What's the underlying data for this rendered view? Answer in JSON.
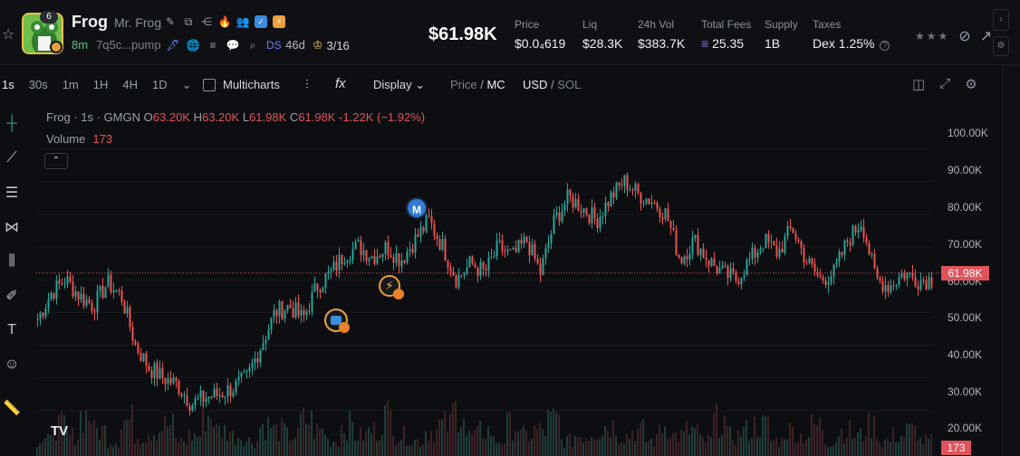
{
  "token": {
    "name": "Frog",
    "full_name": "Mr. Frog",
    "age": "8m",
    "address": "7q5c...pump",
    "badge_count": "6",
    "ds_label": "DS",
    "ds_age": "46d",
    "holders": "3/16"
  },
  "header": {
    "market_cap": "$61.98K",
    "stats": [
      {
        "label": "Price",
        "value": "$0.0₄619"
      },
      {
        "label": "Liq",
        "value": "$28.3K"
      },
      {
        "label": "24h Vol",
        "value": "$383.7K"
      },
      {
        "label": "Total Fees",
        "value": "25.35"
      },
      {
        "label": "Supply",
        "value": "1B"
      },
      {
        "label": "Taxes",
        "value": "Dex 1.25%"
      }
    ]
  },
  "toolbar": {
    "timeframes": [
      "1s",
      "30s",
      "1m",
      "1H",
      "4H",
      "1D"
    ],
    "active_timeframe": "1s",
    "multicharts_label": "Multicharts",
    "display_label": "Display",
    "price_label": "Price",
    "mc_label": "MC",
    "usd_label": "USD",
    "sol_label": "SOL"
  },
  "legend": {
    "pair": "Frog · 1s · GMGN",
    "open": "63.20K",
    "high": "63.20K",
    "low": "61.98K",
    "close": "61.98K",
    "change": "-1.22K (−1.92%)",
    "volume_label": "Volume",
    "volume_value": "173",
    "o": "O",
    "h": "H",
    "l": "L",
    "c": "C"
  },
  "markers": {
    "m_label": "M"
  },
  "chart_data": {
    "type": "candlestick",
    "ylabel": "",
    "y_ticks": [
      "100.00K",
      "90.00K",
      "80.00K",
      "70.00K",
      "60.00K",
      "50.00K",
      "40.00K",
      "30.00K",
      "20.00K"
    ],
    "ylim": [
      15000,
      105000
    ],
    "current_price_label": "61.98K",
    "current_price": 61980,
    "current_volume_label": "173",
    "colors": {
      "up": "#26a69a",
      "down": "#ef5350"
    },
    "close_path": [
      48000,
      56000,
      60000,
      55000,
      52000,
      59000,
      55000,
      40000,
      33000,
      30000,
      28000,
      22000,
      24000,
      25000,
      27000,
      30000,
      40000,
      50000,
      52000,
      48000,
      58000,
      62000,
      68000,
      70000,
      67000,
      70000,
      66000,
      72000,
      78000,
      70000,
      60000,
      65000,
      62000,
      70000,
      67000,
      72000,
      62000,
      78000,
      85000,
      82000,
      78000,
      85000,
      90000,
      86000,
      84000,
      80000,
      66000,
      72000,
      66000,
      62000,
      60000,
      66000,
      72000,
      68000,
      76000,
      66000,
      60000,
      62000,
      72000,
      78000,
      60000,
      58000,
      62000,
      60000,
      60000
    ],
    "volume_level": [
      0.3,
      0.6,
      0.4,
      0.8,
      0.5,
      0.3,
      0.7,
      0.4,
      0.5,
      0.6,
      0.3,
      0.4,
      0.8,
      0.5,
      0.4,
      0.3,
      0.6,
      0.5,
      0.4,
      0.7,
      0.5,
      0.3,
      0.6,
      0.4,
      0.5,
      0.8,
      0.4,
      0.3,
      0.5,
      0.6,
      0.9,
      0.4,
      0.5,
      0.3,
      0.6,
      0.4,
      0.5,
      0.7,
      0.3,
      0.4,
      0.5,
      0.6,
      0.4,
      0.5,
      0.3,
      0.6,
      0.4,
      0.5,
      0.3,
      0.7,
      0.4,
      0.5,
      0.6,
      0.3,
      0.5,
      0.4,
      0.6,
      0.3,
      0.5,
      0.4,
      0.6,
      0.3,
      0.4,
      0.5,
      0.3
    ]
  }
}
